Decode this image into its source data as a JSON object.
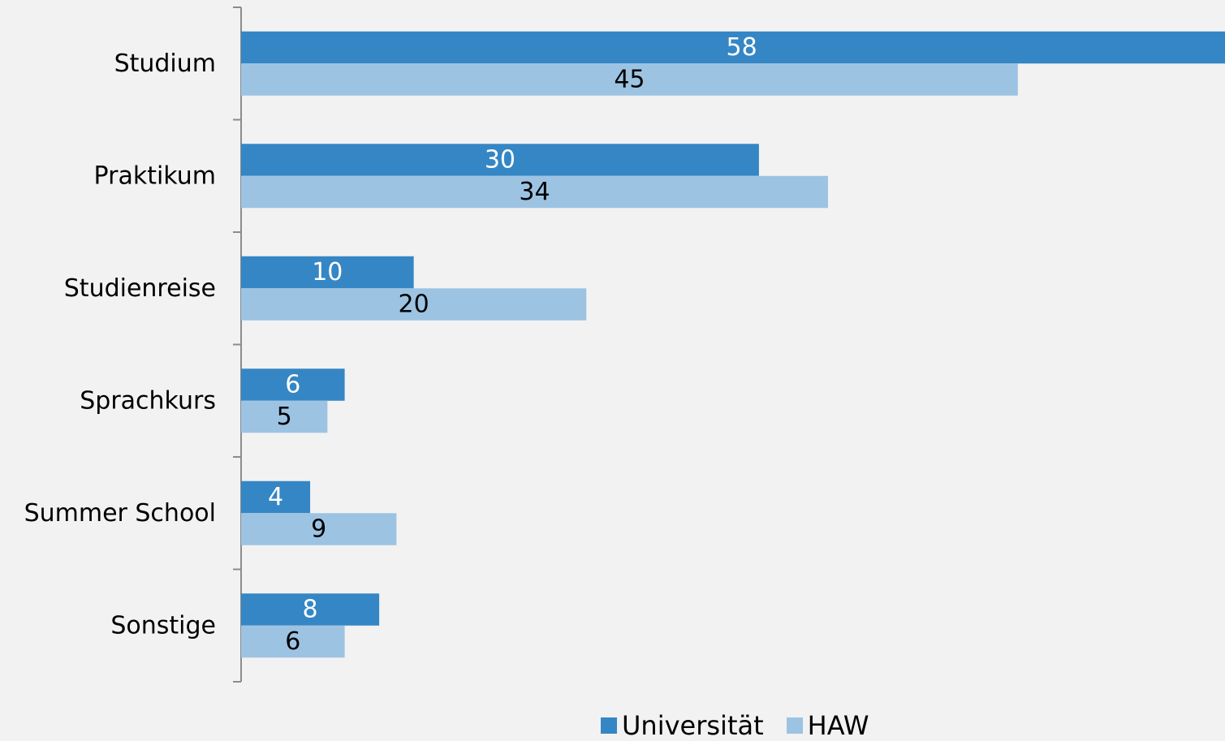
{
  "chart_data": {
    "type": "bar",
    "orientation": "horizontal",
    "categories": [
      "Studium",
      "Praktikum",
      "Studienreise",
      "Sprachkurs",
      "Summer School",
      "Sonstige"
    ],
    "series": [
      {
        "name": "Universität",
        "values": [
          58,
          30,
          10,
          6,
          4,
          8
        ],
        "color": "#3586c4",
        "label_color": "#ffffff"
      },
      {
        "name": "HAW",
        "values": [
          45,
          34,
          20,
          5,
          9,
          6
        ],
        "color": "#9dc3e3",
        "label_color": "#000000"
      }
    ],
    "xlim": [
      0,
      57
    ],
    "grid": false,
    "legend_position": "bottom-center",
    "title": "",
    "xlabel": "",
    "ylabel": ""
  },
  "colors": {
    "background": "#f2f2f2",
    "axis": "#8c8c8c"
  }
}
